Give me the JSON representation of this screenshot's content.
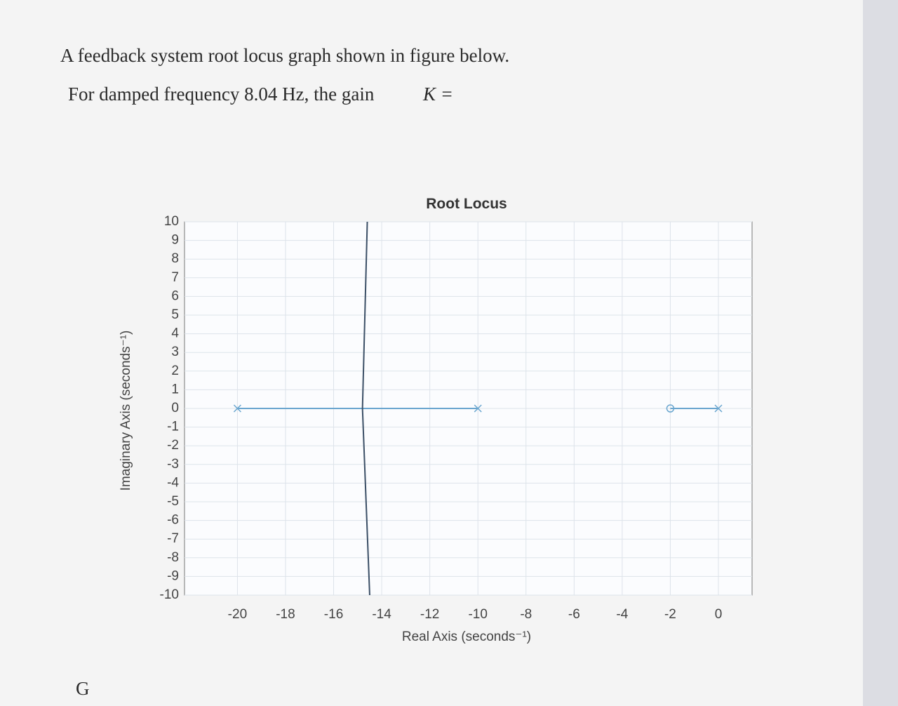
{
  "question": {
    "line1": "A feedback system root locus graph  shown in figure below.",
    "line2": "For damped frequency 8.04 Hz, the gain",
    "gain_symbol": "K =",
    "footer": "G"
  },
  "chart_data": {
    "type": "root-locus",
    "title": "Root Locus",
    "xlabel": "Real Axis (seconds⁻¹)",
    "ylabel": "Imaginary Axis (seconds⁻¹)",
    "xlim": [
      -22.2,
      1.4
    ],
    "ylim": [
      -10,
      10
    ],
    "xticks": [
      -20,
      -18,
      -16,
      -14,
      -12,
      -10,
      -8,
      -6,
      -4,
      -2,
      0
    ],
    "yticks": [
      -10,
      -9,
      -8,
      -7,
      -6,
      -5,
      -4,
      -3,
      -2,
      -1,
      0,
      1,
      2,
      3,
      4,
      5,
      6,
      7,
      8,
      9,
      10
    ],
    "grid": true,
    "series": [
      {
        "color": "#6aa6cf",
        "x": [
          -20,
          -14.8
        ],
        "y": [
          0,
          0
        ]
      },
      {
        "color": "#6aa6cf",
        "x": [
          -10,
          -14.8
        ],
        "y": [
          0,
          0
        ]
      },
      {
        "color": "#3b4f66",
        "x": [
          -14.8,
          -14.6
        ],
        "y": [
          0,
          10
        ]
      },
      {
        "color": "#3b4f66",
        "x": [
          -14.8,
          -14.5
        ],
        "y": [
          0,
          -10
        ]
      },
      {
        "color": "#6aa6cf",
        "x": [
          0,
          -2
        ],
        "y": [
          0,
          0
        ]
      }
    ],
    "poles": {
      "color": "#6aa6cf",
      "x": [
        -20,
        -10,
        0
      ],
      "y": [
        0,
        0,
        0
      ]
    },
    "zeros": {
      "color": "#6aa6cf",
      "x": [
        -2
      ],
      "y": [
        0
      ]
    }
  }
}
